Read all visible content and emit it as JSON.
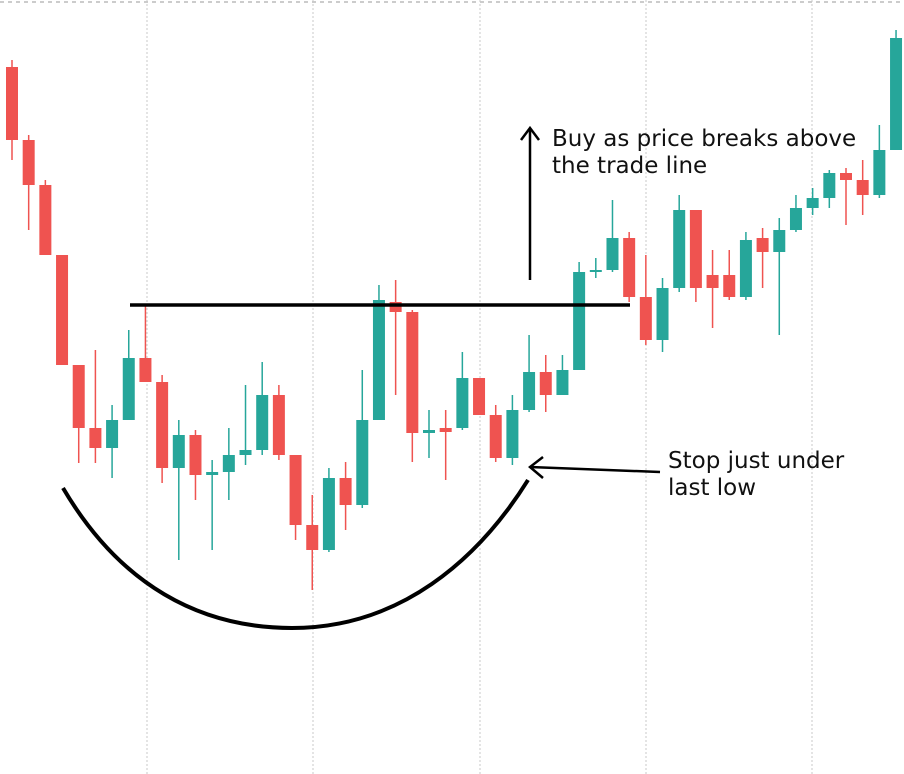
{
  "chart_data": {
    "type": "candlestick",
    "ylim": [
      0,
      774
    ],
    "up_color": "#26a69a",
    "down_color": "#ef5350",
    "open": [
      707,
      634,
      589,
      519,
      409,
      346,
      326,
      354,
      416,
      392,
      306,
      339,
      299,
      302,
      319,
      324,
      379,
      319,
      249,
      224,
      296,
      269,
      354,
      472,
      462,
      341,
      346,
      346,
      396,
      359,
      316,
      364,
      402,
      379,
      404,
      502,
      504,
      536,
      477,
      434,
      486,
      564,
      499,
      499,
      477,
      536,
      522,
      544,
      566,
      576,
      601,
      594,
      579,
      624
    ],
    "high": [
      714,
      639,
      594,
      519,
      409,
      424,
      369,
      444,
      469,
      399,
      354,
      344,
      314,
      346,
      389,
      412,
      389,
      319,
      279,
      306,
      312,
      404,
      489,
      494,
      464,
      364,
      364,
      422,
      396,
      369,
      379,
      439,
      419,
      419,
      512,
      516,
      574,
      542,
      519,
      496,
      579,
      564,
      524,
      524,
      542,
      546,
      556,
      579,
      586,
      604,
      606,
      614,
      649,
      744
    ],
    "low": [
      614,
      544,
      519,
      409,
      311,
      311,
      296,
      354,
      392,
      291,
      214,
      274,
      224,
      274,
      309,
      319,
      314,
      234,
      184,
      222,
      244,
      266,
      354,
      379,
      312,
      316,
      294,
      344,
      359,
      312,
      309,
      362,
      362,
      379,
      404,
      496,
      502,
      472,
      429,
      422,
      482,
      472,
      446,
      474,
      474,
      486,
      439,
      542,
      559,
      566,
      549,
      559,
      576,
      624
    ],
    "close": [
      634,
      589,
      519,
      409,
      346,
      326,
      354,
      416,
      392,
      306,
      339,
      299,
      302,
      319,
      324,
      379,
      319,
      249,
      224,
      296,
      269,
      354,
      474,
      462,
      341,
      344,
      342,
      396,
      359,
      316,
      364,
      402,
      379,
      404,
      502,
      504,
      536,
      477,
      434,
      486,
      564,
      486,
      486,
      477,
      534,
      522,
      544,
      566,
      576,
      601,
      594,
      579,
      624,
      736
    ],
    "trade_line": 469,
    "annotations": [
      {
        "lines": [
          "Buy as price breaks above",
          "the trade line"
        ]
      },
      {
        "lines": [
          "Stop just under",
          "last low"
        ]
      }
    ]
  }
}
